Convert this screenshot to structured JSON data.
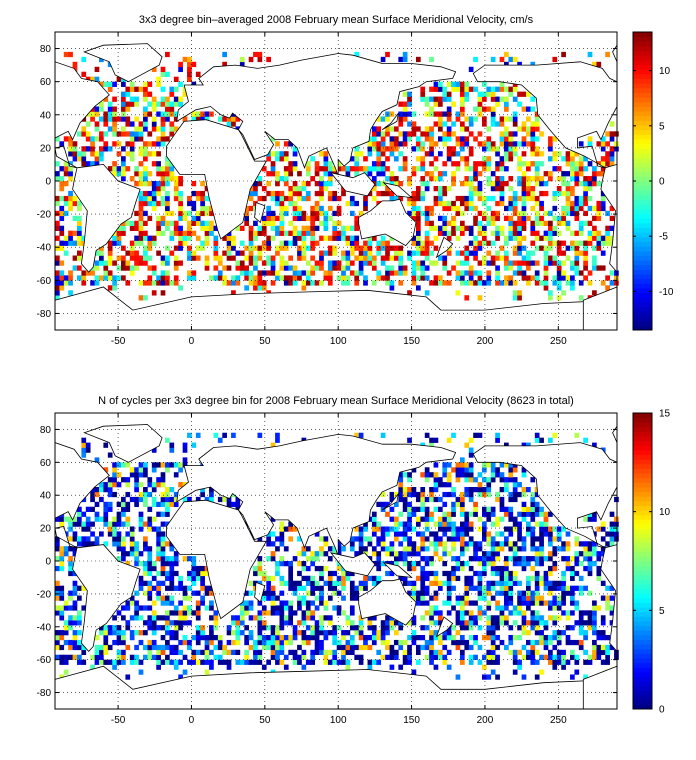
{
  "chart_data": [
    {
      "type": "heatmap",
      "title": "3x3 degree bin–averaged 2008 February mean Surface Meridional Velocity, cm/s",
      "xlabel": "",
      "ylabel": "",
      "xlim": [
        -93,
        290
      ],
      "ylim": [
        -90,
        90
      ],
      "xticks": [
        "-50",
        "0",
        "50",
        "100",
        "150",
        "200",
        "250"
      ],
      "xtick_values": [
        -50,
        0,
        50,
        100,
        150,
        200,
        250
      ],
      "yticks": [
        "80",
        "60",
        "40",
        "20",
        "0",
        "-20",
        "-40",
        "-60",
        "-80"
      ],
      "ytick_values": [
        80,
        60,
        40,
        20,
        0,
        -20,
        -40,
        -60,
        -80
      ],
      "grid": true,
      "bin_size_deg": 3,
      "colorbar": {
        "range": [
          -13.5,
          13.5
        ],
        "ticks": [
          "10",
          "5",
          "0",
          "-5",
          "-10"
        ],
        "tick_values": [
          10,
          5,
          0,
          -5,
          -10
        ],
        "colormap": "jet"
      },
      "cell_fill": 0.55,
      "seed": 2008
    },
    {
      "type": "heatmap",
      "title": "N of cycles per 3x3 degree bin for 2008 February mean Surface Meridional Velocity (8623 in total)",
      "xlabel": "",
      "ylabel": "",
      "xlim": [
        -93,
        290
      ],
      "ylim": [
        -90,
        90
      ],
      "xticks": [
        "-50",
        "0",
        "50",
        "100",
        "150",
        "200",
        "250"
      ],
      "xtick_values": [
        -50,
        0,
        50,
        100,
        150,
        200,
        250
      ],
      "yticks": [
        "80",
        "60",
        "40",
        "20",
        "0",
        "-20",
        "-40",
        "-60",
        "-80"
      ],
      "ytick_values": [
        80,
        60,
        40,
        20,
        0,
        -20,
        -40,
        -60,
        -80
      ],
      "grid": true,
      "bin_size_deg": 3,
      "total_cycles": 8623,
      "colorbar": {
        "range": [
          0,
          15
        ],
        "ticks": [
          "15",
          "10",
          "5",
          "0"
        ],
        "tick_values": [
          15,
          10,
          5,
          0
        ],
        "colormap": "jet"
      },
      "cell_fill": 0.55,
      "seed": 8623
    }
  ]
}
